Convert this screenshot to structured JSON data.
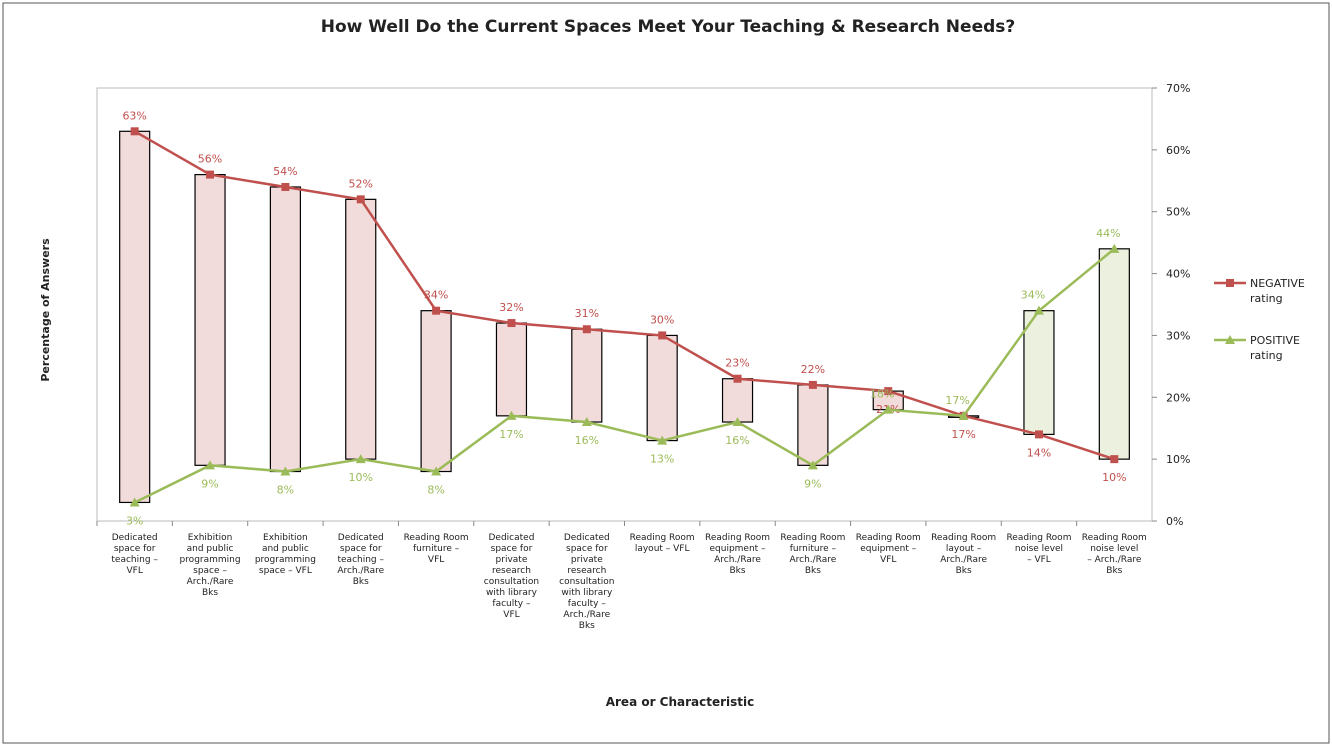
{
  "chart_data": {
    "type": "line",
    "title": "How Well Do the Current Spaces Meet Your Teaching & Research Needs?",
    "x_label": "Area or Characteristic",
    "y_label": "Percentage of Answers",
    "categories": [
      "Dedicated space for teaching – VFL",
      "Exhibition and public programming space – Arch./Rare Bks",
      "Exhibition and public programming space – VFL",
      "Dedicated space for teaching – Arch./Rare Bks",
      "Reading Room furniture – VFL",
      "Dedicated space for private research consultation with library faculty – VFL",
      "Dedicated space for private research consultation with library faculty – Arch./Rare Bks",
      "Reading Room layout – VFL",
      "Reading Room equipment – Arch./Rare Bks",
      "Reading Room furniture – Arch./Rare Bks",
      "Reading Room equipment – VFL",
      "Reading Room layout – Arch./Rare Bks",
      "Reading Room noise level – VFL",
      "Reading Room noise level – Arch./Rare Bks"
    ],
    "series": [
      {
        "name": "NEGATIVE rating",
        "color": "#c0504d",
        "values": [
          63,
          56,
          54,
          52,
          34,
          32,
          31,
          30,
          23,
          22,
          21,
          17,
          14,
          10
        ],
        "value_labels": [
          "63%",
          "56%",
          "54%",
          "52%",
          "34%",
          "32%",
          "31%",
          "30%",
          "23%",
          "22%",
          "21%",
          "17%",
          "14%",
          "10%"
        ]
      },
      {
        "name": "POSITIVE rating",
        "color": "#9bbb59",
        "values": [
          3,
          9,
          8,
          10,
          8,
          17,
          16,
          13,
          16,
          9,
          18,
          17,
          34,
          44
        ],
        "value_labels": [
          "3%",
          "9%",
          "8%",
          "10%",
          "8%",
          "17%",
          "16%",
          "13%",
          "16%",
          "9%",
          "18%",
          "17%",
          "34%",
          "44%"
        ]
      }
    ],
    "up_bar_color": "#ebf1de",
    "down_bar_color": "#f2dcdb",
    "ylim": [
      0,
      70
    ],
    "yticks": [
      {
        "value": 0,
        "label": "0%"
      },
      {
        "value": 10,
        "label": "10%"
      },
      {
        "value": 20,
        "label": "20%"
      },
      {
        "value": 30,
        "label": "30%"
      },
      {
        "value": 40,
        "label": "40%"
      },
      {
        "value": 50,
        "label": "50%"
      },
      {
        "value": 60,
        "label": "60%"
      },
      {
        "value": 70,
        "label": "70%"
      }
    ],
    "y_axis_side": "right",
    "legend": "right"
  }
}
